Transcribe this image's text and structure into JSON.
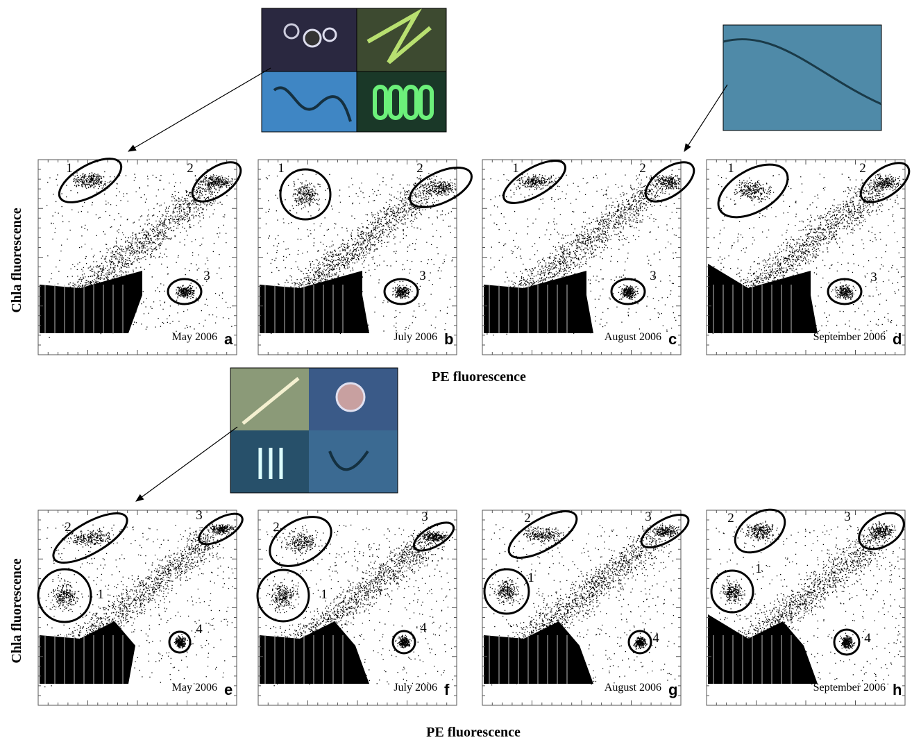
{
  "y_axis_label": "Chla fluorescence",
  "x_axis_label": "PE fluorescence",
  "panels": [
    {
      "letter": "a",
      "date": "May 2006",
      "clusters": [
        "1",
        "2",
        "3"
      ]
    },
    {
      "letter": "b",
      "date": "July 2006",
      "clusters": [
        "1",
        "2",
        "3"
      ]
    },
    {
      "letter": "c",
      "date": "August 2006",
      "clusters": [
        "1",
        "2",
        "3"
      ]
    },
    {
      "letter": "d",
      "date": "September 2006",
      "clusters": [
        "1",
        "2",
        "3"
      ]
    },
    {
      "letter": "e",
      "date": "May 2006",
      "clusters": [
        "2",
        "3",
        "1",
        "4"
      ]
    },
    {
      "letter": "f",
      "date": "July 2006",
      "clusters": [
        "2",
        "3",
        "1",
        "4"
      ]
    },
    {
      "letter": "g",
      "date": "August 2006",
      "clusters": [
        "2",
        "3",
        "1",
        "4"
      ]
    },
    {
      "letter": "h",
      "date": "September 2006",
      "clusters": [
        "2",
        "3",
        "1",
        "4"
      ]
    }
  ]
}
